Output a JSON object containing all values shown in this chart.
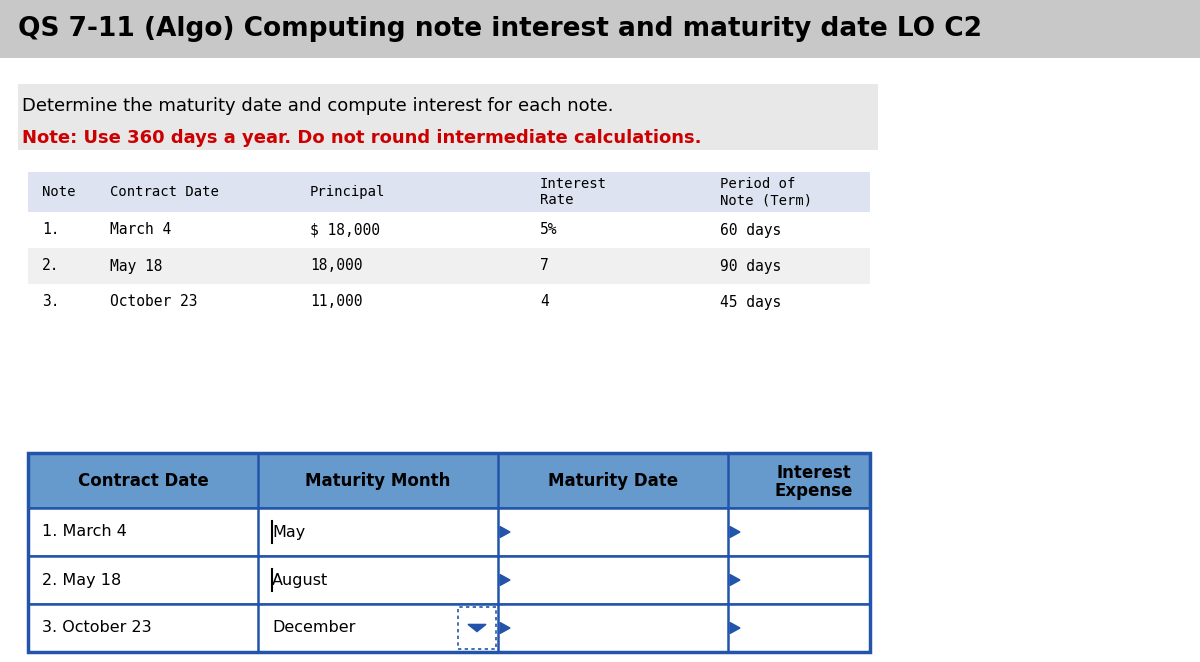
{
  "title": "QS 7-11 (Algo) Computing note interest and maturity date LO C2",
  "subtitle_black": "Determine the maturity date and compute interest for each note.",
  "subtitle_red": "Note: Use 360 days a year. Do not round intermediate calculations.",
  "top_table": {
    "col_headers": [
      "Note",
      "Contract Date",
      "Principal",
      "Interest\nRate",
      "Period of\nNote (Term)"
    ],
    "rows": [
      [
        "1.",
        "March 4",
        "$ 18,000",
        "5%",
        "60 days"
      ],
      [
        "2.",
        "May 18",
        "18,000",
        "7",
        "90 days"
      ],
      [
        "3.",
        "October 23",
        "11,000",
        "4",
        "45 days"
      ]
    ]
  },
  "bottom_table": {
    "col_headers": [
      "Contract Date",
      "Maturity Month",
      "Maturity Date",
      "Interest\nExpense"
    ],
    "rows": [
      [
        "1. March 4",
        "May",
        "",
        ""
      ],
      [
        "2. May 18",
        "August",
        "",
        ""
      ],
      [
        "3. October 23",
        "December",
        "",
        ""
      ]
    ]
  },
  "title_bg": "#c8c8c8",
  "title_color": "#000000",
  "subtitle_color": "#000000",
  "red_color": "#cc0000",
  "top_table_header_bg": "#dde3f0",
  "bottom_table_header_bg": "#6699cc",
  "bottom_table_border_color": "#2255aa",
  "monospace_font": "monospace",
  "sans_font": "DejaVu Sans"
}
